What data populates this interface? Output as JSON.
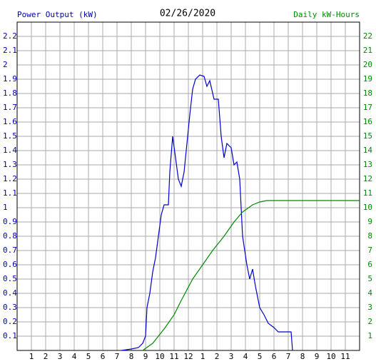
{
  "chart_data": {
    "type": "line",
    "title": "02/26/2020",
    "ylabel": "Power Output (kW)",
    "y2label": "Daily kW-Hours",
    "ylabel_color": "#0000aa",
    "y2label_color": "#008800",
    "xlim": [
      0,
      24
    ],
    "xticks": [
      1,
      2,
      3,
      4,
      5,
      6,
      7,
      8,
      9,
      10,
      11,
      12,
      {
        "value": 13,
        "label": "1"
      },
      {
        "value": 14,
        "label": "2"
      },
      {
        "value": 15,
        "label": "3"
      },
      {
        "value": 16,
        "label": "4"
      },
      {
        "value": 17,
        "label": "5"
      },
      {
        "value": 18,
        "label": "6"
      },
      {
        "value": 19,
        "label": "7"
      },
      {
        "value": 20,
        "label": "8"
      },
      {
        "value": 21,
        "label": "9"
      },
      {
        "value": 22,
        "label": "10"
      },
      {
        "value": 23,
        "label": "11"
      }
    ],
    "ylim": [
      0,
      2.3
    ],
    "yticks": [
      0.1,
      0.2,
      0.3,
      0.4,
      0.5,
      0.6,
      0.7,
      0.8,
      0.9,
      1.0,
      1.1,
      1.2,
      1.3,
      1.4,
      1.5,
      1.6,
      1.7,
      1.8,
      1.9,
      2.0,
      2.1,
      2.2
    ],
    "y2lim": [
      0,
      23
    ],
    "y2ticks": [
      1,
      2,
      3,
      4,
      5,
      6,
      7,
      8,
      9,
      10,
      11,
      12,
      13,
      14,
      15,
      16,
      17,
      18,
      19,
      20,
      21,
      22
    ],
    "grid": true,
    "series": [
      {
        "color": "#0000cc",
        "axis": "y",
        "x": [
          7.3,
          8.0,
          8.5,
          8.8,
          9.0,
          9.1,
          9.3,
          9.5,
          9.7,
          9.9,
          10.1,
          10.3,
          10.6,
          10.7,
          10.9,
          11.1,
          11.3,
          11.5,
          11.7,
          11.9,
          12.1,
          12.3,
          12.5,
          12.8,
          13.1,
          13.3,
          13.5,
          13.8,
          14.1,
          14.3,
          14.5,
          14.7,
          15.0,
          15.2,
          15.4,
          15.6,
          15.8,
          16.1,
          16.3,
          16.5,
          16.7,
          17.0,
          17.3,
          17.6,
          18.0,
          18.3,
          19.2,
          19.3
        ],
        "values": [
          0,
          0.01,
          0.02,
          0.05,
          0.1,
          0.3,
          0.4,
          0.55,
          0.65,
          0.8,
          0.95,
          1.02,
          1.02,
          1.25,
          1.5,
          1.35,
          1.2,
          1.15,
          1.25,
          1.45,
          1.65,
          1.83,
          1.9,
          1.93,
          1.92,
          1.85,
          1.89,
          1.76,
          1.76,
          1.5,
          1.35,
          1.45,
          1.42,
          1.3,
          1.32,
          1.2,
          0.8,
          0.6,
          0.5,
          0.57,
          0.45,
          0.3,
          0.25,
          0.19,
          0.16,
          0.13,
          0.13,
          0
        ]
      },
      {
        "color": "#008800",
        "axis": "y2",
        "x": [
          8.8,
          9.5,
          10.3,
          11.0,
          11.5,
          12.3,
          13.0,
          13.7,
          14.5,
          15.2,
          15.8,
          16.5,
          17.0,
          17.5,
          24
        ],
        "values": [
          0,
          0.5,
          1.5,
          2.5,
          3.5,
          5,
          6,
          7,
          8,
          9,
          9.7,
          10.2,
          10.4,
          10.5,
          10.5
        ]
      }
    ]
  }
}
